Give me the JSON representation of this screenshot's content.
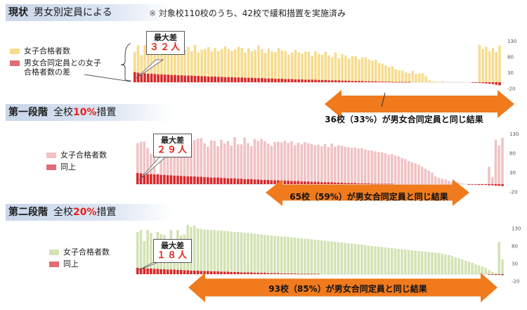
{
  "note": "※ 対象校110校のうち、42校で緩和措置を実施済み",
  "colors": {
    "current_bar": "#f7dc8f",
    "stage1_bar": "#f0c2c4",
    "stage2_bar": "#d3e2b4",
    "diff_bar": "#d9282b",
    "arrow": "#f07a1c",
    "title_bg": "#c9d6ea",
    "highlight": "#e8231b"
  },
  "sections": [
    {
      "title_lead": "現状",
      "title_rest": "男女別定員による",
      "title_red": "",
      "title_tail": "",
      "legend_main": "女子合格者数",
      "legend_diff": "男女合同定員との女子合格者数の差",
      "callout_label": "最大差",
      "callout_value": "３２人",
      "result_text": "36校（33%）が男女合同定員と同じ結果"
    },
    {
      "title_lead": "第一段階",
      "title_rest": "全校",
      "title_red": "10%",
      "title_tail": "措置",
      "legend_main": "女子合格者数",
      "legend_diff": "同上",
      "callout_label": "最大差",
      "callout_value": "２９人",
      "result_text": "65校（59%）が男女合同定員と同じ結果"
    },
    {
      "title_lead": "第二段階",
      "title_rest": "全校",
      "title_red": "20%",
      "title_tail": "措置",
      "legend_main": "女子合格者数",
      "legend_diff": "同上",
      "callout_label": "最大差",
      "callout_value": "１８人",
      "result_text": "93校（85%）が男女合同定員と同じ結果"
    }
  ],
  "chart_data": [
    {
      "type": "bar",
      "yticks": [
        130,
        80,
        30,
        -20
      ],
      "ylim": [
        -20,
        130
      ],
      "schools": 110,
      "girls_passed": [
        96,
        117,
        86,
        118,
        112,
        111,
        119,
        108,
        117,
        97,
        102,
        111,
        106,
        117,
        105,
        103,
        112,
        98,
        118,
        94,
        103,
        105,
        111,
        97,
        108,
        98,
        105,
        113,
        106,
        99,
        104,
        112,
        109,
        94,
        107,
        98,
        102,
        116,
        104,
        93,
        106,
        98,
        95,
        108,
        100,
        99,
        87,
        94,
        102,
        95,
        91,
        97,
        96,
        83,
        98,
        90,
        87,
        96,
        85,
        79,
        95,
        76,
        89,
        85,
        75,
        83,
        82,
        72,
        79,
        79,
        72,
        68,
        71,
        60,
        59,
        53,
        48,
        50,
        41,
        38,
        37,
        31,
        28,
        36,
        26,
        28,
        29,
        19,
        6,
        3,
        2,
        1,
        3,
        0,
        0,
        0,
        0,
        0,
        0,
        0,
        0,
        0,
        0,
        119,
        105,
        112,
        98,
        108,
        95,
        116
      ],
      "gap": [
        32,
        30,
        29,
        28,
        27,
        27,
        26,
        25,
        25,
        24,
        24,
        23,
        23,
        22,
        22,
        21,
        21,
        21,
        20,
        20,
        19,
        19,
        18,
        18,
        18,
        17,
        17,
        16,
        16,
        16,
        15,
        15,
        15,
        14,
        14,
        14,
        13,
        13,
        13,
        12,
        12,
        12,
        11,
        11,
        11,
        10,
        10,
        10,
        9,
        9,
        9,
        8,
        8,
        8,
        8,
        7,
        7,
        7,
        6,
        6,
        6,
        6,
        5,
        5,
        5,
        4,
        4,
        4,
        4,
        3,
        3,
        3,
        3,
        2,
        2,
        2,
        2,
        1,
        1,
        1,
        1,
        1,
        1,
        0,
        0,
        0,
        0,
        0,
        0,
        0,
        0,
        0,
        0,
        0,
        0,
        0,
        0,
        0,
        0,
        0,
        0,
        -1,
        -1,
        -2,
        -3,
        -4,
        -5,
        -6,
        -8,
        -10
      ]
    },
    {
      "type": "bar",
      "yticks": [
        130,
        80,
        30,
        -20
      ],
      "ylim": [
        -20,
        130
      ],
      "schools": 110,
      "girls_passed": [
        106,
        110,
        110,
        93,
        78,
        84,
        28,
        101,
        104,
        101,
        97,
        93,
        110,
        112,
        100,
        96,
        107,
        114,
        117,
        119,
        106,
        97,
        113,
        112,
        98,
        115,
        105,
        111,
        100,
        122,
        103,
        103,
        121,
        106,
        98,
        117,
        112,
        117,
        111,
        105,
        99,
        109,
        110,
        108,
        112,
        107,
        111,
        101,
        107,
        103,
        109,
        106,
        104,
        100,
        102,
        98,
        104,
        96,
        105,
        97,
        101,
        99,
        97,
        96,
        94,
        95,
        92,
        93,
        90,
        88,
        87,
        85,
        83,
        82,
        80,
        76,
        78,
        74,
        72,
        68,
        65,
        60,
        57,
        54,
        50,
        45,
        40,
        35,
        30,
        20,
        16,
        14,
        12,
        8,
        6,
        4,
        3,
        2,
        1,
        0,
        0,
        0,
        0,
        0,
        0,
        45,
        18,
        115,
        100,
        120
      ],
      "gap": [
        29,
        28,
        27,
        26,
        26,
        25,
        25,
        24,
        24,
        23,
        23,
        22,
        22,
        21,
        21,
        20,
        20,
        20,
        19,
        19,
        18,
        18,
        17,
        17,
        17,
        16,
        16,
        15,
        15,
        15,
        14,
        14,
        13,
        13,
        13,
        12,
        12,
        11,
        11,
        11,
        10,
        10,
        10,
        9,
        9,
        9,
        8,
        8,
        8,
        7,
        7,
        7,
        6,
        6,
        6,
        5,
        5,
        5,
        5,
        4,
        4,
        4,
        3,
        3,
        3,
        3,
        2,
        2,
        2,
        2,
        1,
        1,
        1,
        1,
        1,
        1,
        1,
        0,
        0,
        0,
        0,
        0,
        0,
        0,
        0,
        0,
        0,
        0,
        0,
        0,
        0,
        0,
        0,
        0,
        0,
        0,
        0,
        0,
        0,
        -1,
        -1,
        -1,
        -2,
        -2,
        -2,
        -3,
        -3,
        -4,
        -4,
        -5
      ]
    },
    {
      "type": "bar",
      "yticks": [
        130,
        80,
        30,
        -20
      ],
      "ylim": [
        -20,
        130
      ],
      "schools": 110,
      "girls_passed": [
        120,
        125,
        94,
        126,
        117,
        90,
        120,
        114,
        111,
        100,
        125,
        92,
        126,
        110,
        113,
        140,
        134,
        138,
        130,
        129,
        127,
        126,
        126,
        125,
        124,
        124,
        123,
        122,
        121,
        120,
        120,
        119,
        118,
        117,
        116,
        115,
        114,
        113,
        112,
        111,
        110,
        109,
        108,
        107,
        107,
        106,
        105,
        104,
        103,
        102,
        101,
        100,
        99,
        98,
        97,
        96,
        95,
        94,
        93,
        92,
        91,
        90,
        89,
        88,
        87,
        86,
        85,
        84,
        83,
        81,
        80,
        79,
        78,
        77,
        76,
        75,
        74,
        73,
        72,
        71,
        70,
        69,
        68,
        67,
        66,
        65,
        64,
        63,
        62,
        61,
        60,
        58,
        56,
        54,
        52,
        48,
        45,
        42,
        38,
        35,
        32,
        28,
        25,
        22,
        18,
        12,
        6,
        3,
        92,
        42
      ],
      "gap": [
        18,
        17,
        17,
        16,
        16,
        15,
        15,
        14,
        14,
        13,
        13,
        13,
        12,
        12,
        11,
        11,
        10,
        10,
        10,
        9,
        9,
        9,
        8,
        8,
        8,
        7,
        7,
        7,
        6,
        6,
        6,
        5,
        5,
        5,
        5,
        4,
        4,
        4,
        4,
        3,
        3,
        3,
        3,
        2,
        2,
        2,
        2,
        2,
        1,
        1,
        1,
        1,
        1,
        1,
        1,
        0,
        0,
        0,
        0,
        0,
        0,
        0,
        0,
        0,
        0,
        0,
        0,
        0,
        0,
        0,
        0,
        0,
        0,
        0,
        0,
        0,
        0,
        0,
        0,
        0,
        0,
        0,
        0,
        0,
        0,
        0,
        0,
        0,
        0,
        0,
        0,
        0,
        0,
        0,
        0,
        0,
        0,
        0,
        0,
        0,
        0,
        0,
        0,
        0,
        0,
        -1,
        -1,
        -2,
        -2,
        -3
      ]
    }
  ]
}
